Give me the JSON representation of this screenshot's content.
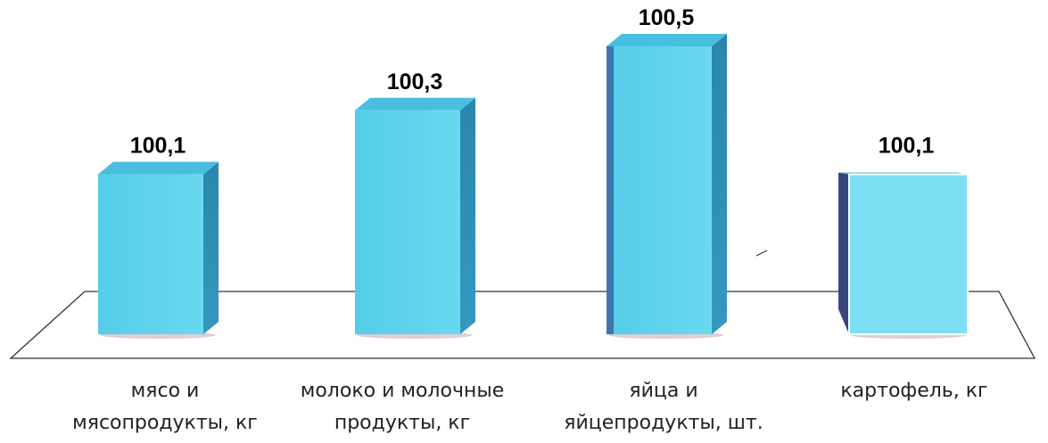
{
  "chart_data": {
    "type": "bar",
    "categories": [
      [
        "мясо и",
        "мясопродукты, кг"
      ],
      [
        "молоко и молочные",
        "продукты, кг"
      ],
      [
        "яйца и",
        "яйцепродукты, шт."
      ],
      [
        "картофель, кг"
      ]
    ],
    "values": [
      100.1,
      100.3,
      100.5,
      100.1
    ],
    "value_labels": [
      "100,1",
      "100,3",
      "100,5",
      "100,1"
    ],
    "title": "",
    "xlabel": "",
    "ylabel": "",
    "ylim": [
      99.6,
      100.5
    ],
    "grid": false,
    "legend": "none",
    "colors": {
      "bar_front": "#5cd3ec",
      "bar_front_light": "#7de0f2",
      "bar_side": "#2f8fb6",
      "bar_side_dark": "#39467a",
      "bar_top": "#48bfe0",
      "floor_line": "#333333",
      "shadow": "#c9a3b4"
    }
  }
}
